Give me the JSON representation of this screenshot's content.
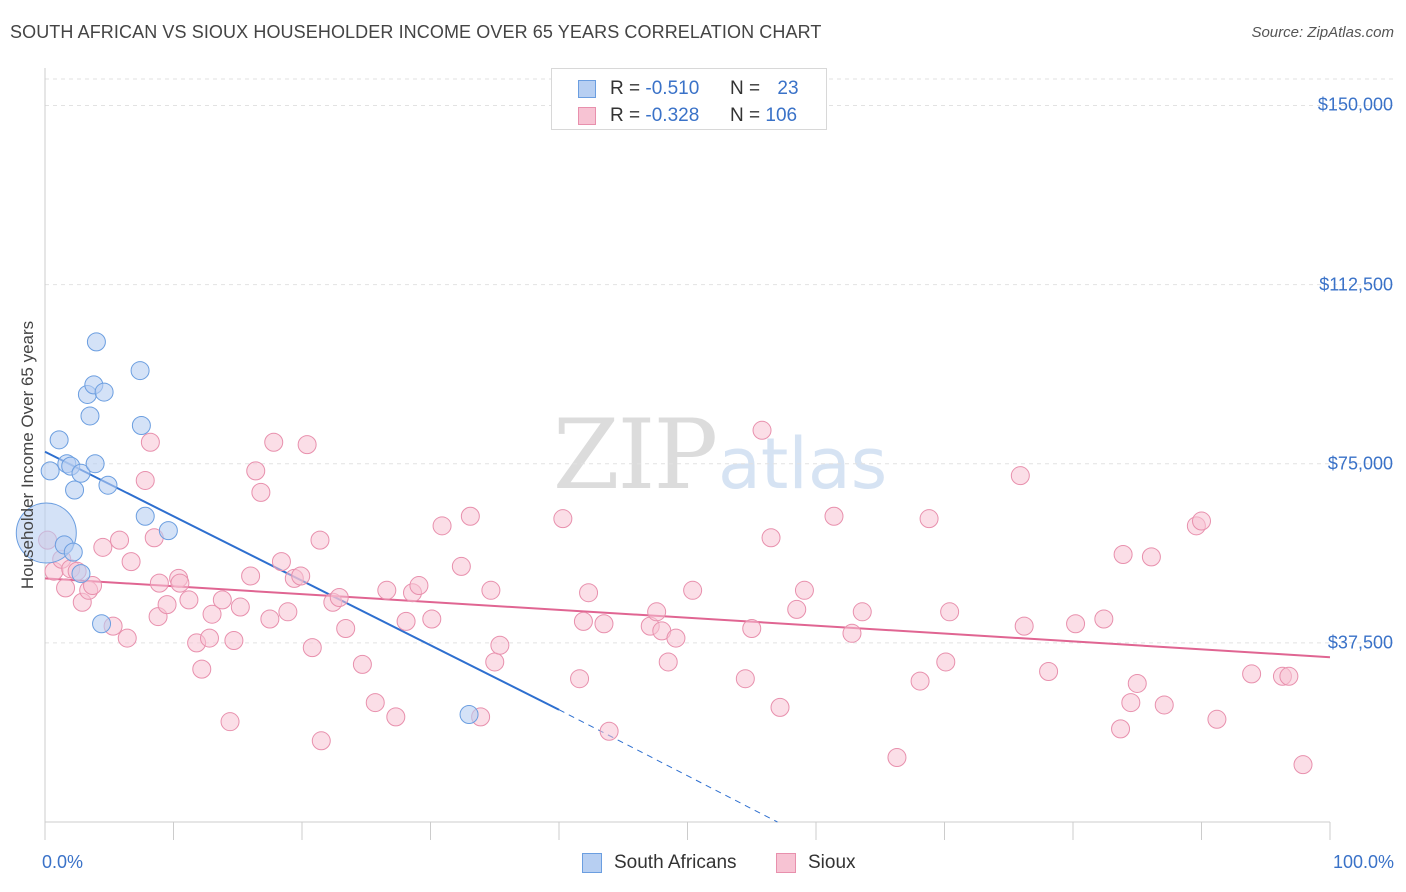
{
  "title": "SOUTH AFRICAN VS SIOUX HOUSEHOLDER INCOME OVER 65 YEARS CORRELATION CHART",
  "source": "Source: ZipAtlas.com",
  "watermark": {
    "zip": "ZIP",
    "atlas": "atlas"
  },
  "colors": {
    "south_africans_fill": "#b7cff2",
    "south_africans_stroke": "#6b9ee0",
    "south_africans_line": "#2e6fcf",
    "sioux_fill": "#f7c3d3",
    "sioux_stroke": "#e890ad",
    "sioux_line": "#e06592",
    "tick_text": "#3a72c8",
    "grid": "#e2e2e2"
  },
  "legend_top": {
    "rows": [
      {
        "series": "South Africans",
        "r_label": "R =",
        "r_value": "-0.510",
        "n_label": "N =",
        "n_value": "23"
      },
      {
        "series": "Sioux",
        "r_label": "R =",
        "r_value": "-0.328",
        "n_label": "N =",
        "n_value": "106"
      }
    ]
  },
  "legend_bottom": [
    "South Africans",
    "Sioux"
  ],
  "chart_data": {
    "type": "scatter",
    "title": "SOUTH AFRICAN VS SIOUX HOUSEHOLDER INCOME OVER 65 YEARS CORRELATION CHART",
    "xlabel": "",
    "ylabel": "Householder Income Over 65 years",
    "xlim": [
      0,
      100
    ],
    "ylim": [
      0,
      157000
    ],
    "x_tick_labels": [
      "0.0%",
      "100.0%"
    ],
    "y_ticks": [
      37500,
      75000,
      112500,
      150000
    ],
    "y_tick_labels": [
      "$37,500",
      "$75,000",
      "$112,500",
      "$150,000"
    ],
    "grid": "horizontal dashed",
    "legend": "top-center and bottom",
    "series": [
      {
        "name": "South Africans",
        "r": -0.51,
        "n": 23,
        "trend": {
          "x0": 0,
          "y0": 77500,
          "x1_solid": 40,
          "y1_solid": 23500,
          "x1_dashed": 57,
          "y1_dashed": 0
        },
        "points": [
          [
            0.1,
            60500,
            30
          ],
          [
            0.4,
            73500,
            9
          ],
          [
            1.1,
            80000,
            9
          ],
          [
            1.5,
            58000,
            9
          ],
          [
            1.7,
            75000,
            9
          ],
          [
            2.0,
            74500,
            9
          ],
          [
            2.2,
            56500,
            9
          ],
          [
            2.3,
            69500,
            9
          ],
          [
            2.8,
            73000,
            9
          ],
          [
            2.8,
            52000,
            9
          ],
          [
            3.3,
            89500,
            9
          ],
          [
            3.5,
            85000,
            9
          ],
          [
            3.8,
            91500,
            9
          ],
          [
            3.9,
            75000,
            9
          ],
          [
            4.0,
            100500,
            9
          ],
          [
            4.4,
            41500,
            9
          ],
          [
            4.6,
            90000,
            9
          ],
          [
            4.9,
            70500,
            9
          ],
          [
            7.4,
            94500,
            9
          ],
          [
            7.5,
            83000,
            9
          ],
          [
            7.8,
            64000,
            9
          ],
          [
            9.6,
            61000,
            9
          ],
          [
            33.0,
            22500,
            9
          ]
        ]
      },
      {
        "name": "Sioux",
        "r": -0.328,
        "n": 106,
        "trend": {
          "x0": 0,
          "y0": 51000,
          "x1": 100,
          "y1": 34500
        },
        "points": [
          [
            0.2,
            59000
          ],
          [
            0.7,
            52500
          ],
          [
            1.3,
            55000
          ],
          [
            1.6,
            49000
          ],
          [
            2.0,
            53000
          ],
          [
            2.5,
            52500
          ],
          [
            2.9,
            46000
          ],
          [
            3.4,
            48500
          ],
          [
            3.7,
            49500
          ],
          [
            4.5,
            57500
          ],
          [
            5.3,
            41000
          ],
          [
            5.8,
            59000
          ],
          [
            6.4,
            38500
          ],
          [
            6.7,
            54500
          ],
          [
            7.8,
            71500
          ],
          [
            8.2,
            79500
          ],
          [
            8.5,
            59500
          ],
          [
            8.8,
            43000
          ],
          [
            8.9,
            50000
          ],
          [
            9.5,
            45500
          ],
          [
            10.4,
            51000
          ],
          [
            10.5,
            50000
          ],
          [
            11.2,
            46500
          ],
          [
            11.8,
            37500
          ],
          [
            12.2,
            32000
          ],
          [
            12.8,
            38500
          ],
          [
            13.0,
            43500
          ],
          [
            13.8,
            46500
          ],
          [
            14.4,
            21000
          ],
          [
            14.7,
            38000
          ],
          [
            15.2,
            45000
          ],
          [
            16.0,
            51500
          ],
          [
            16.4,
            73500
          ],
          [
            16.8,
            69000
          ],
          [
            17.5,
            42500
          ],
          [
            17.8,
            79500
          ],
          [
            18.4,
            54500
          ],
          [
            18.9,
            44000
          ],
          [
            19.4,
            51000
          ],
          [
            19.9,
            51500
          ],
          [
            20.4,
            79000
          ],
          [
            20.8,
            36500
          ],
          [
            21.4,
            59000
          ],
          [
            21.5,
            17000
          ],
          [
            22.4,
            46000
          ],
          [
            22.9,
            47000
          ],
          [
            23.4,
            40500
          ],
          [
            24.7,
            33000
          ],
          [
            25.7,
            25000
          ],
          [
            26.6,
            48500
          ],
          [
            27.3,
            22000
          ],
          [
            28.1,
            42000
          ],
          [
            28.6,
            48000
          ],
          [
            29.1,
            49500
          ],
          [
            30.1,
            42500
          ],
          [
            30.9,
            62000
          ],
          [
            32.4,
            53500
          ],
          [
            33.1,
            64000
          ],
          [
            33.9,
            22000
          ],
          [
            34.7,
            48500
          ],
          [
            35.0,
            33500
          ],
          [
            35.4,
            37000
          ],
          [
            40.3,
            63500
          ],
          [
            41.6,
            30000
          ],
          [
            41.9,
            42000
          ],
          [
            42.3,
            48000
          ],
          [
            43.5,
            41500
          ],
          [
            43.9,
            19000
          ],
          [
            47.1,
            41000
          ],
          [
            47.6,
            44000
          ],
          [
            48.0,
            40000
          ],
          [
            48.5,
            33500
          ],
          [
            49.1,
            38500
          ],
          [
            50.4,
            48500
          ],
          [
            54.5,
            30000
          ],
          [
            55.0,
            40500
          ],
          [
            55.8,
            82000
          ],
          [
            56.5,
            59500
          ],
          [
            57.2,
            24000
          ],
          [
            58.5,
            44500
          ],
          [
            59.1,
            48500
          ],
          [
            61.4,
            64000
          ],
          [
            62.8,
            39500
          ],
          [
            63.6,
            44000
          ],
          [
            66.3,
            13500
          ],
          [
            68.1,
            29500
          ],
          [
            68.8,
            63500
          ],
          [
            70.1,
            33500
          ],
          [
            70.4,
            44000
          ],
          [
            75.9,
            72500
          ],
          [
            76.2,
            41000
          ],
          [
            78.1,
            31500
          ],
          [
            80.2,
            41500
          ],
          [
            82.4,
            42500
          ],
          [
            83.7,
            19500
          ],
          [
            83.9,
            56000
          ],
          [
            84.5,
            25000
          ],
          [
            85.0,
            29000
          ],
          [
            86.1,
            55500
          ],
          [
            87.1,
            24500
          ],
          [
            89.6,
            62000
          ],
          [
            90.0,
            63000
          ],
          [
            91.2,
            21500
          ],
          [
            93.9,
            31000
          ],
          [
            96.3,
            30500
          ],
          [
            96.8,
            30500
          ],
          [
            97.9,
            12000
          ]
        ]
      }
    ]
  }
}
